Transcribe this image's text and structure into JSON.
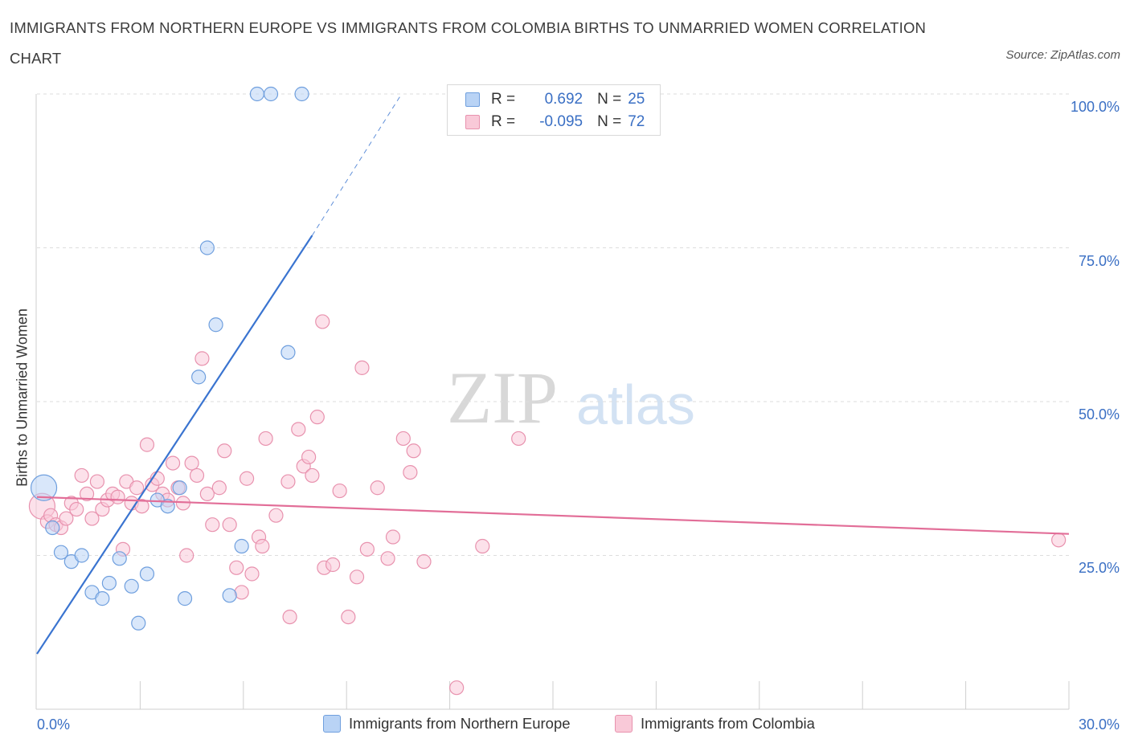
{
  "header": {
    "title": "IMMIGRANTS FROM NORTHERN EUROPE VS IMMIGRANTS FROM COLOMBIA BIRTHS TO UNMARRIED WOMEN CORRELATION CHART",
    "source": "Source: ZipAtlas.com"
  },
  "watermark": {
    "zip": "ZIP",
    "atlas": "atlas"
  },
  "stats_legend": {
    "rows": [
      {
        "r_label": "R =",
        "r_value": "0.692",
        "n_label": "N =",
        "n_value": "25",
        "color_fill": "#b9d3f5",
        "color_stroke": "#6f9fde"
      },
      {
        "r_label": "R =",
        "r_value": "-0.095",
        "n_label": "N =",
        "n_value": "72",
        "color_fill": "#f9c9d8",
        "color_stroke": "#e892ae"
      }
    ]
  },
  "bottom_legend": {
    "items": [
      {
        "label": "Immigrants from Northern Europe",
        "color_fill": "#b9d3f5",
        "color_stroke": "#6f9fde"
      },
      {
        "label": "Immigrants from Colombia",
        "color_fill": "#f9c9d8",
        "color_stroke": "#e892ae"
      }
    ]
  },
  "chart_data": {
    "type": "scatter",
    "title": "IMMIGRANTS FROM NORTHERN EUROPE VS IMMIGRANTS FROM COLOMBIA BIRTHS TO UNMARRIED WOMEN CORRELATION CHART",
    "xlabel": "",
    "ylabel": "Births to Unmarried Women",
    "xlim": [
      0,
      30
    ],
    "ylim": [
      0,
      100
    ],
    "x_tick_labels": [
      "0.0%",
      "30.0%"
    ],
    "y_tick_labels": [
      "25.0%",
      "50.0%",
      "75.0%",
      "100.0%"
    ],
    "y_gridlines": [
      25,
      50,
      75,
      100
    ],
    "colors": {
      "northern_europe_fill": "#b9d3f5",
      "northern_europe_stroke": "#6f9fde",
      "northern_europe_line": "#3a74d0",
      "colombia_fill": "#f9c9d8",
      "colombia_stroke": "#e892ae",
      "colombia_line": "#e26e98",
      "axis_text": "#3a6fc4",
      "grid": "#dddddd"
    },
    "series": [
      {
        "name": "Immigrants from Northern Europe",
        "r": 0.692,
        "n": 25,
        "trend": {
          "x0": 0.0,
          "y0": 9.0,
          "x1": 8.0,
          "y1": 77.0,
          "dashed_to_x": 10.6,
          "dashed_to_y": 100.0
        },
        "points": [
          {
            "x": 0.2,
            "y": 36.0,
            "big": true
          },
          {
            "x": 0.45,
            "y": 29.5
          },
          {
            "x": 0.7,
            "y": 25.5
          },
          {
            "x": 1.0,
            "y": 24.0
          },
          {
            "x": 1.3,
            "y": 25.0
          },
          {
            "x": 1.6,
            "y": 19.0
          },
          {
            "x": 1.9,
            "y": 18.0
          },
          {
            "x": 2.1,
            "y": 20.5
          },
          {
            "x": 2.4,
            "y": 24.5
          },
          {
            "x": 2.75,
            "y": 20.0
          },
          {
            "x": 2.95,
            "y": 14.0
          },
          {
            "x": 3.2,
            "y": 22.0
          },
          {
            "x": 3.5,
            "y": 34.0
          },
          {
            "x": 3.8,
            "y": 33.0
          },
          {
            "x": 4.15,
            "y": 36.0
          },
          {
            "x": 4.3,
            "y": 18.0
          },
          {
            "x": 4.7,
            "y": 54.0
          },
          {
            "x": 4.95,
            "y": 75.0
          },
          {
            "x": 5.2,
            "y": 62.5
          },
          {
            "x": 5.6,
            "y": 18.5
          },
          {
            "x": 5.95,
            "y": 26.5
          },
          {
            "x": 6.4,
            "y": 100.0
          },
          {
            "x": 6.8,
            "y": 100.0
          },
          {
            "x": 7.3,
            "y": 58.0
          },
          {
            "x": 7.7,
            "y": 100.0
          }
        ]
      },
      {
        "name": "Immigrants from Colombia",
        "r": -0.095,
        "n": 72,
        "trend": {
          "x0": 0.0,
          "y0": 34.5,
          "x1": 30.0,
          "y1": 28.5
        },
        "points": [
          {
            "x": 0.15,
            "y": 33.0,
            "big": true
          },
          {
            "x": 0.3,
            "y": 30.5
          },
          {
            "x": 0.4,
            "y": 31.5
          },
          {
            "x": 0.55,
            "y": 30.0
          },
          {
            "x": 0.7,
            "y": 29.5
          },
          {
            "x": 0.85,
            "y": 31.0
          },
          {
            "x": 1.0,
            "y": 33.5
          },
          {
            "x": 1.15,
            "y": 32.5
          },
          {
            "x": 1.3,
            "y": 38.0
          },
          {
            "x": 1.45,
            "y": 35.0
          },
          {
            "x": 1.6,
            "y": 31.0
          },
          {
            "x": 1.75,
            "y": 37.0
          },
          {
            "x": 1.9,
            "y": 32.5
          },
          {
            "x": 2.05,
            "y": 34.0
          },
          {
            "x": 2.2,
            "y": 35.0
          },
          {
            "x": 2.35,
            "y": 34.5
          },
          {
            "x": 2.5,
            "y": 26.0
          },
          {
            "x": 2.6,
            "y": 37.0
          },
          {
            "x": 2.75,
            "y": 33.5
          },
          {
            "x": 2.9,
            "y": 36.0
          },
          {
            "x": 3.05,
            "y": 33.0
          },
          {
            "x": 3.2,
            "y": 43.0
          },
          {
            "x": 3.35,
            "y": 36.5
          },
          {
            "x": 3.5,
            "y": 37.5
          },
          {
            "x": 3.65,
            "y": 35.0
          },
          {
            "x": 3.8,
            "y": 34.0
          },
          {
            "x": 3.95,
            "y": 40.0
          },
          {
            "x": 4.1,
            "y": 36.0
          },
          {
            "x": 4.25,
            "y": 33.5
          },
          {
            "x": 4.35,
            "y": 25.0
          },
          {
            "x": 4.5,
            "y": 40.0
          },
          {
            "x": 4.65,
            "y": 38.0
          },
          {
            "x": 4.8,
            "y": 57.0
          },
          {
            "x": 4.95,
            "y": 35.0
          },
          {
            "x": 5.1,
            "y": 30.0
          },
          {
            "x": 5.3,
            "y": 36.0
          },
          {
            "x": 5.45,
            "y": 42.0
          },
          {
            "x": 5.6,
            "y": 30.0
          },
          {
            "x": 5.8,
            "y": 23.0
          },
          {
            "x": 5.95,
            "y": 19.0
          },
          {
            "x": 6.1,
            "y": 37.5
          },
          {
            "x": 6.25,
            "y": 22.0
          },
          {
            "x": 6.45,
            "y": 28.0
          },
          {
            "x": 6.55,
            "y": 26.5
          },
          {
            "x": 6.65,
            "y": 44.0
          },
          {
            "x": 6.95,
            "y": 31.5
          },
          {
            "x": 7.3,
            "y": 37.0
          },
          {
            "x": 7.35,
            "y": 15.0
          },
          {
            "x": 7.6,
            "y": 45.5
          },
          {
            "x": 7.75,
            "y": 39.5
          },
          {
            "x": 7.9,
            "y": 41.0
          },
          {
            "x": 8.0,
            "y": 38.0
          },
          {
            "x": 8.15,
            "y": 47.5
          },
          {
            "x": 8.3,
            "y": 63.0
          },
          {
            "x": 8.35,
            "y": 23.0
          },
          {
            "x": 8.6,
            "y": 23.5
          },
          {
            "x": 8.8,
            "y": 35.5
          },
          {
            "x": 9.05,
            "y": 15.0
          },
          {
            "x": 9.3,
            "y": 21.5
          },
          {
            "x": 9.45,
            "y": 55.5
          },
          {
            "x": 9.6,
            "y": 26.0
          },
          {
            "x": 9.9,
            "y": 36.0
          },
          {
            "x": 10.2,
            "y": 24.5
          },
          {
            "x": 10.35,
            "y": 28.0
          },
          {
            "x": 10.65,
            "y": 44.0
          },
          {
            "x": 10.85,
            "y": 38.5
          },
          {
            "x": 10.95,
            "y": 42.0
          },
          {
            "x": 11.25,
            "y": 24.0
          },
          {
            "x": 12.2,
            "y": 3.5
          },
          {
            "x": 12.95,
            "y": 26.5
          },
          {
            "x": 14.0,
            "y": 44.0
          },
          {
            "x": 29.7,
            "y": 27.5
          }
        ]
      }
    ]
  }
}
